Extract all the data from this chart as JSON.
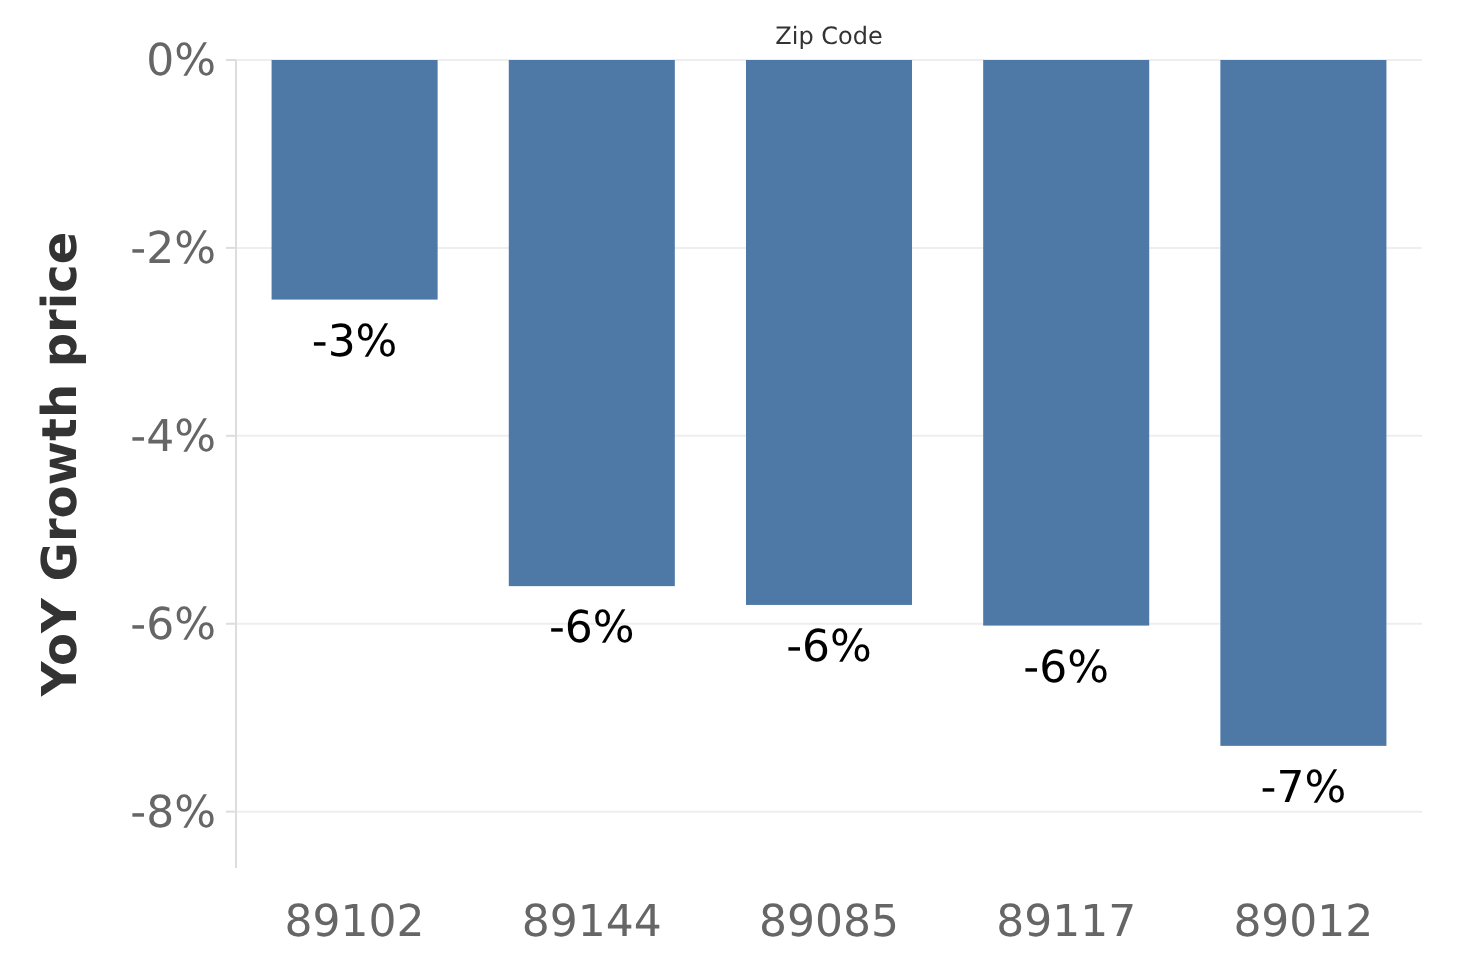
{
  "chart_data": {
    "type": "bar",
    "xlabel": "Zip Code",
    "ylabel": "YoY Growth price",
    "categories": [
      "89102",
      "89144",
      "89085",
      "89117",
      "89012"
    ],
    "values": [
      -2.55,
      -5.6,
      -5.8,
      -6.02,
      -7.3
    ],
    "value_labels": [
      "-3%",
      "-6%",
      "-6%",
      "-6%",
      "-7%"
    ],
    "color": "#4e79a7",
    "ylim": [
      -8.6,
      0
    ],
    "yticks": [
      {
        "value": 0,
        "label": "0%"
      },
      {
        "value": -2,
        "label": "-2%"
      },
      {
        "value": -4,
        "label": "-4%"
      },
      {
        "value": -6,
        "label": "-6%"
      },
      {
        "value": -8,
        "label": "-8%"
      }
    ],
    "grid": "y"
  }
}
